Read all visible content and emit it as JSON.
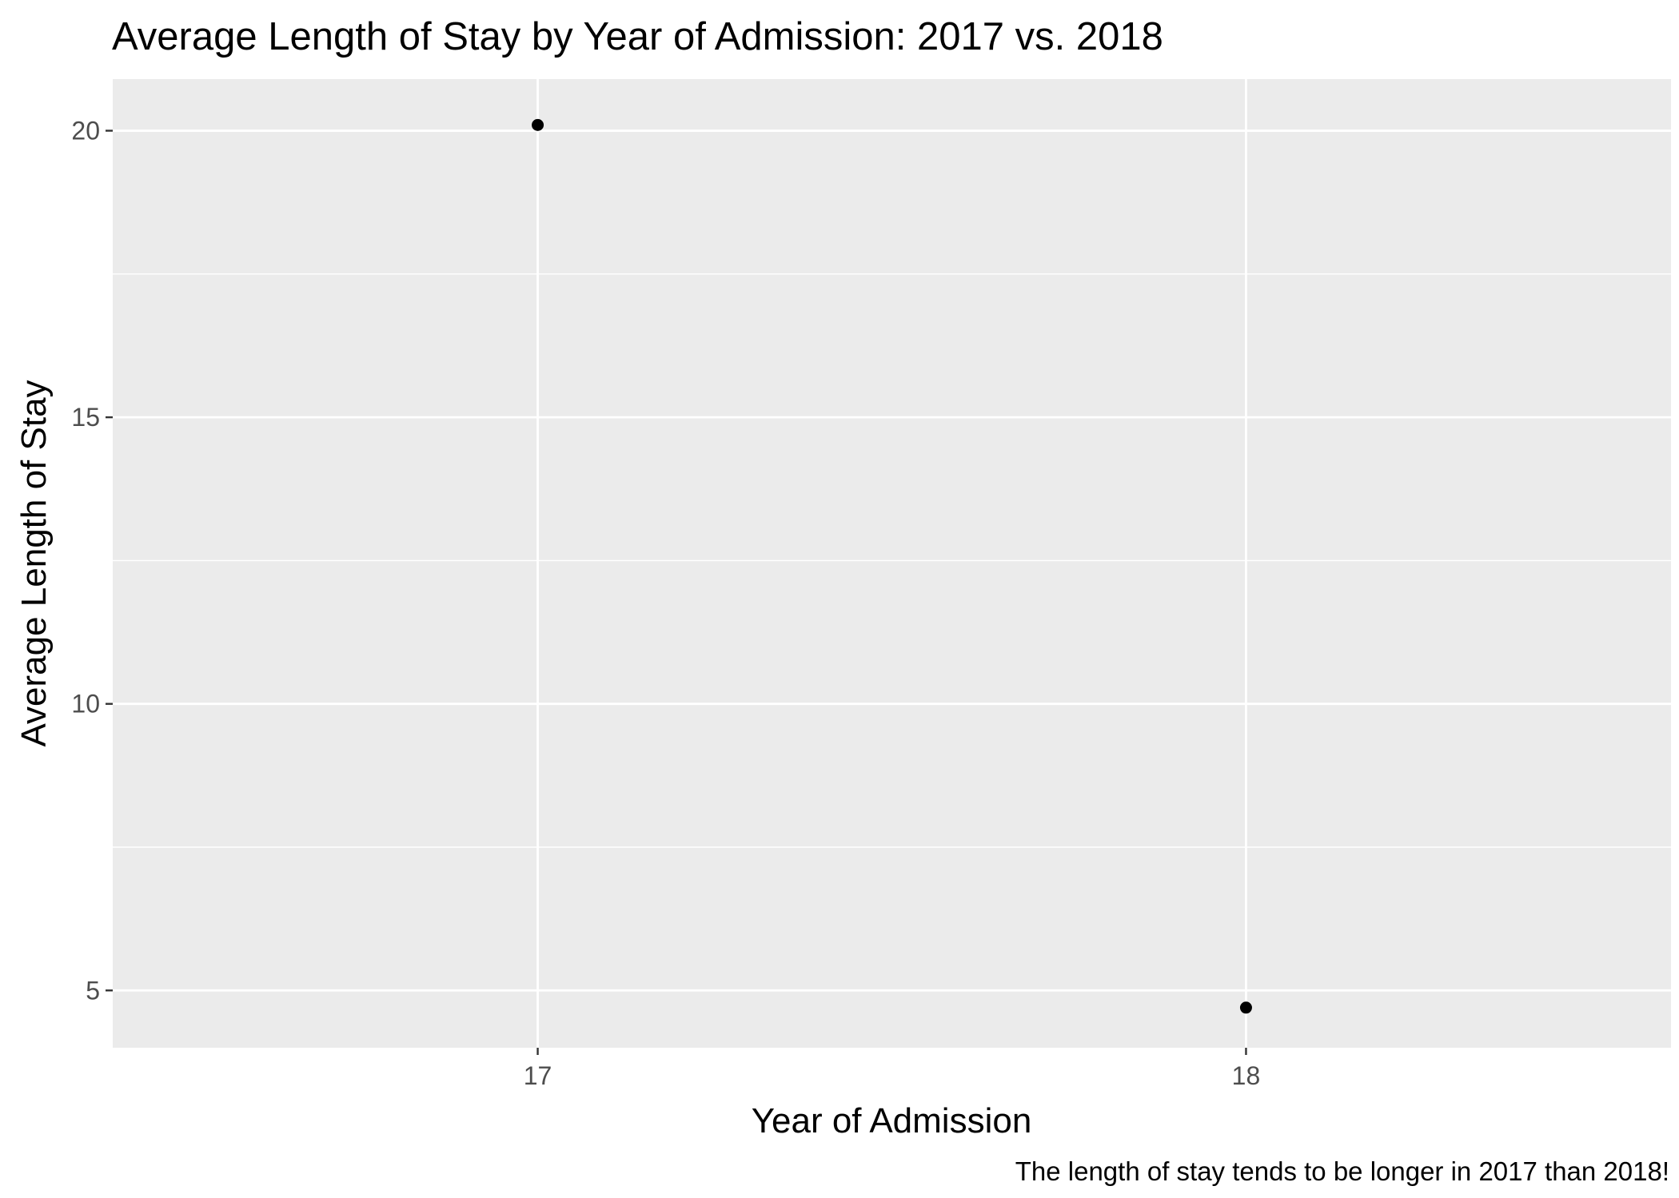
{
  "chart_data": {
    "type": "scatter",
    "title": "Average Length of Stay by Year of Admission: 2017 vs. 2018",
    "xlabel": "Year of Admission",
    "ylabel": "Average Length of Stay",
    "caption": "The length of stay tends to be longer in 2017 than 2018!",
    "x": [
      17,
      18
    ],
    "y": [
      20.1,
      4.7
    ],
    "xlim": [
      16.4,
      18.6
    ],
    "ylim": [
      4.0,
      20.9
    ],
    "x_ticks": [
      17,
      18
    ],
    "x_tick_labels": [
      "17",
      "18"
    ],
    "y_ticks": [
      5,
      10,
      15,
      20
    ],
    "y_tick_labels": [
      "5",
      "10",
      "15",
      "20"
    ],
    "y_minor_gridlines": [
      7.5,
      12.5,
      17.5
    ],
    "grid": true,
    "legend": "none",
    "colors": {
      "panel_background": "#ebebeb",
      "gridline": "#ffffff",
      "point": "#000000",
      "tick_label": "#4d4d4d",
      "axis_tick": "#333333"
    }
  }
}
